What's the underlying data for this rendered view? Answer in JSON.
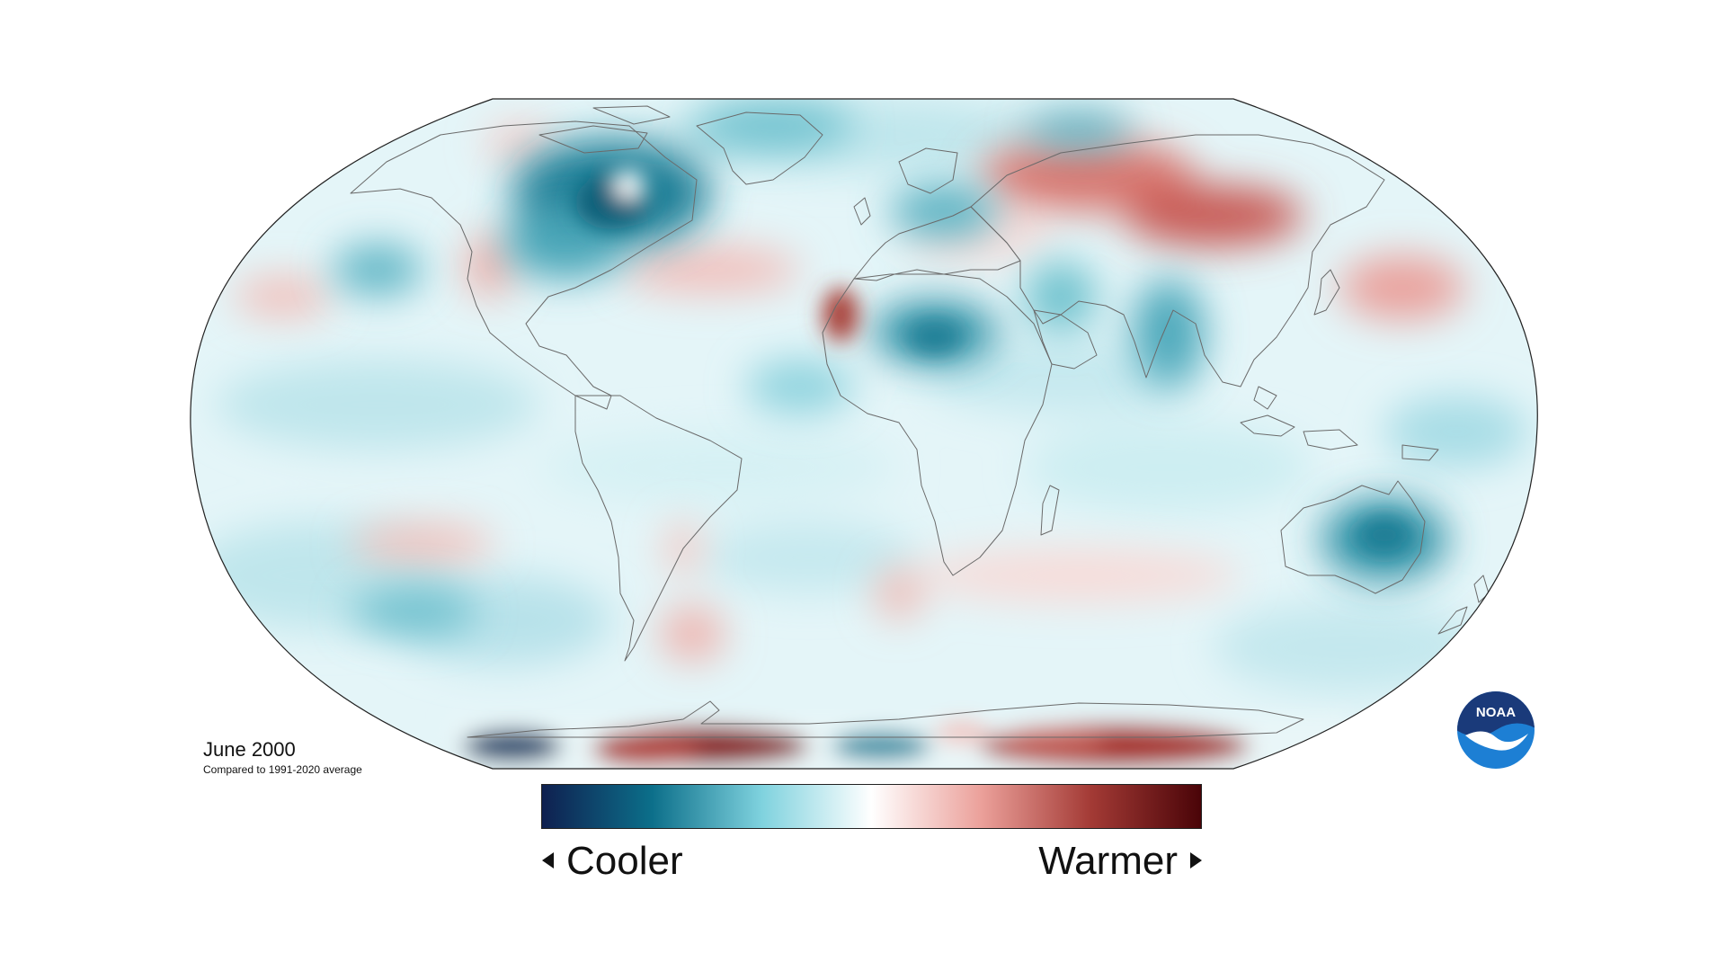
{
  "map": {
    "projection": "Robinson",
    "variable": "temperature anomaly",
    "date_label": "June 2000",
    "baseline_note": "Compared to 1991-2020 average"
  },
  "legend": {
    "left_label": "Cooler",
    "right_label": "Warmer",
    "colors": [
      "#0f2050",
      "#0c6f8a",
      "#7fd2de",
      "#ffffff",
      "#eba09a",
      "#a33a35",
      "#4a0408"
    ]
  },
  "logo": {
    "text": "NOAA",
    "colors": {
      "outer": "#1d7fd4",
      "dark": "#1a3a7a",
      "light": "#ffffff"
    }
  },
  "colors": {
    "ocean_base": "#e4f5f8",
    "coast_stroke": "#6a6a6a",
    "outline_stroke": "#222222"
  }
}
